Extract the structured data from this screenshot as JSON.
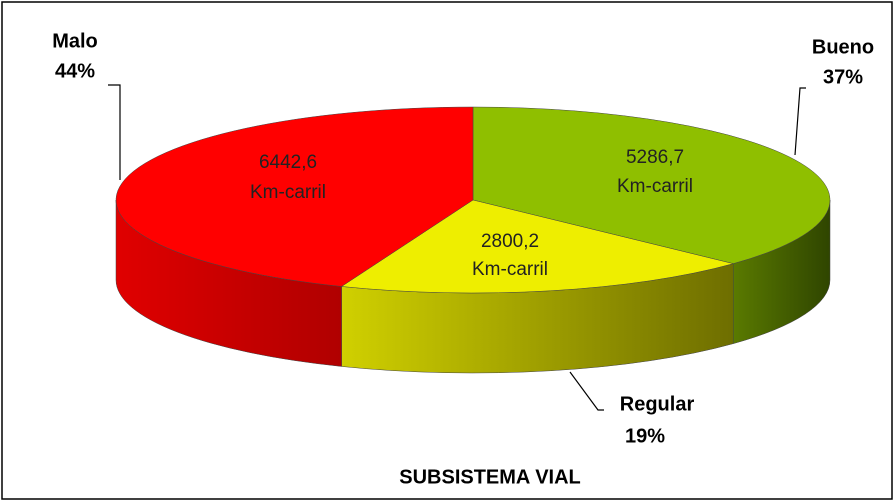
{
  "chart_data": {
    "type": "pie",
    "title": "SUBSISTEMA VIAL",
    "categories": [
      "Bueno",
      "Regular",
      "Malo"
    ],
    "values": [
      37,
      19,
      44
    ],
    "value_labels": [
      "37%",
      "19%",
      "44%"
    ],
    "amounts": [
      5286.7,
      2800.2,
      6442.6
    ],
    "amount_labels": [
      "5286,7",
      "2800,2",
      "6442,6"
    ],
    "unit": "Km-carril",
    "colors": [
      "#8fbf00",
      "#eeee00",
      "#ff0000"
    ],
    "side_colors": [
      [
        "#5a7a00",
        "#2f4500"
      ],
      [
        "#d0d000",
        "#6e6e00"
      ],
      [
        "#e00000",
        "#b00000"
      ]
    ]
  }
}
